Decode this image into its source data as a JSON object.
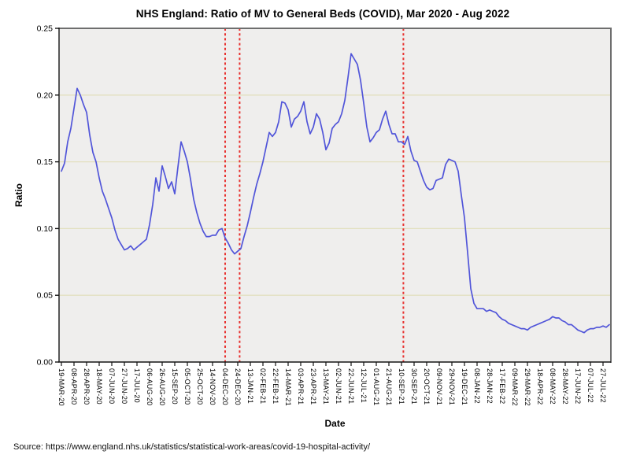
{
  "title": "NHS England: Ratio of MV to General Beds (COVID), Mar 2020 - Aug 2022",
  "source": "Source: https://www.england.nhs.uk/statistics/statistical-work-areas/covid-19-hospital-activity/",
  "chart_data": {
    "type": "line",
    "title": "NHS England: Ratio of MV to General Beds (COVID), Mar 2020 - Aug 2022",
    "xlabel": "Date",
    "ylabel": "Ratio",
    "ylim": [
      0,
      0.25
    ],
    "ytick_step": 0.05,
    "yticks": [
      "0.00",
      "0.05",
      "0.10",
      "0.15",
      "0.20",
      "0.25"
    ],
    "x_tick_labels": [
      "19-MAR-20",
      "08-APR-20",
      "28-APR-20",
      "18-MAY-20",
      "07-JUN-20",
      "27-JUN-20",
      "17-JUL-20",
      "06-AUG-20",
      "26-AUG-20",
      "15-SEP-20",
      "05-OCT-20",
      "25-OCT-20",
      "14-NOV-20",
      "04-DEC-20",
      "24-DEC-20",
      "13-JAN-21",
      "02-FEB-21",
      "22-FEB-21",
      "14-MAR-21",
      "03-APR-21",
      "23-APR-21",
      "13-MAY-21",
      "02-JUN-21",
      "22-JUN-21",
      "12-JUL-21",
      "01-AUG-21",
      "21-AUG-21",
      "10-SEP-21",
      "30-SEP-21",
      "20-OCT-21",
      "09-NOV-21",
      "29-NOV-21",
      "19-DEC-21",
      "08-JAN-22",
      "28-JAN-22",
      "17-FEB-22",
      "09-MAR-22",
      "29-MAR-22",
      "18-APR-22",
      "08-MAY-22",
      "28-MAY-22",
      "17-JUN-22",
      "07-JUL-22",
      "27-JUL-22"
    ],
    "x_tick_interval_days": 20,
    "x_domain_days": [
      -3.75,
      872.5
    ],
    "grid": "horizontal",
    "legend": "none",
    "panel_bg": "#efeeed",
    "grid_color": "#e3e0c0",
    "line_color": "#5155d9",
    "frame_color": "#6e6e6e",
    "axis_color": "#151515",
    "vline_color": "#e8312f",
    "vlines_days": [
      260,
      283,
      543
    ],
    "series": [
      {
        "name": "Ratio of MV to General Beds (COVID)",
        "day_start": 0,
        "day_step": 5,
        "values": [
          0.143,
          0.149,
          0.165,
          0.175,
          0.19,
          0.205,
          0.2,
          0.193,
          0.187,
          0.17,
          0.157,
          0.15,
          0.138,
          0.128,
          0.122,
          0.115,
          0.108,
          0.099,
          0.092,
          0.088,
          0.084,
          0.085,
          0.087,
          0.084,
          0.086,
          0.088,
          0.09,
          0.092,
          0.103,
          0.118,
          0.138,
          0.128,
          0.147,
          0.139,
          0.13,
          0.135,
          0.126,
          0.146,
          0.165,
          0.158,
          0.15,
          0.137,
          0.122,
          0.112,
          0.104,
          0.098,
          0.094,
          0.094,
          0.095,
          0.095,
          0.099,
          0.1,
          0.093,
          0.089,
          0.084,
          0.081,
          0.083,
          0.085,
          0.094,
          0.102,
          0.112,
          0.123,
          0.133,
          0.141,
          0.15,
          0.161,
          0.172,
          0.169,
          0.172,
          0.18,
          0.195,
          0.194,
          0.189,
          0.176,
          0.182,
          0.184,
          0.188,
          0.195,
          0.18,
          0.171,
          0.176,
          0.186,
          0.182,
          0.172,
          0.159,
          0.164,
          0.175,
          0.178,
          0.18,
          0.186,
          0.196,
          0.213,
          0.231,
          0.227,
          0.223,
          0.211,
          0.194,
          0.176,
          0.165,
          0.168,
          0.172,
          0.174,
          0.182,
          0.188,
          0.178,
          0.171,
          0.171,
          0.165,
          0.165,
          0.163,
          0.169,
          0.158,
          0.151,
          0.15,
          0.143,
          0.136,
          0.131,
          0.129,
          0.13,
          0.136,
          0.137,
          0.138,
          0.148,
          0.152,
          0.151,
          0.15,
          0.143,
          0.125,
          0.108,
          0.082,
          0.055,
          0.044,
          0.04,
          0.04,
          0.04,
          0.038,
          0.039,
          0.038,
          0.037,
          0.034,
          0.032,
          0.031,
          0.029,
          0.028,
          0.027,
          0.026,
          0.025,
          0.025,
          0.024,
          0.026,
          0.027,
          0.028,
          0.029,
          0.03,
          0.031,
          0.032,
          0.034,
          0.033,
          0.033,
          0.031,
          0.03,
          0.028,
          0.028,
          0.026,
          0.024,
          0.023,
          0.022,
          0.024,
          0.025,
          0.025,
          0.026,
          0.026,
          0.027,
          0.026,
          0.028
        ]
      }
    ]
  }
}
